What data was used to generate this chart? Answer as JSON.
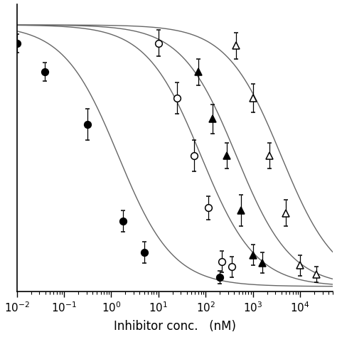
{
  "xlabel": "Inhibitor conc.   (nM)",
  "xlim_log": [
    -2,
    4.7
  ],
  "ylim": [
    -0.02,
    1.08
  ],
  "series": [
    {
      "name": "filled_circle",
      "marker": "o",
      "filled": true,
      "ic50_log": 0.15,
      "hill": 0.75,
      "x_data_log": [
        -2.0,
        -1.4,
        -0.5,
        0.25,
        0.7,
        2.3
      ],
      "y_data": [
        0.93,
        0.82,
        0.62,
        0.25,
        0.13,
        0.035
      ],
      "yerr": [
        0.035,
        0.035,
        0.06,
        0.04,
        0.04,
        0.025
      ]
    },
    {
      "name": "open_circle",
      "marker": "o",
      "filled": false,
      "ic50_log": 1.9,
      "hill": 0.75,
      "x_data_log": [
        1.0,
        1.4,
        1.75,
        2.05,
        2.35,
        2.55
      ],
      "y_data": [
        0.93,
        0.72,
        0.5,
        0.3,
        0.095,
        0.075
      ],
      "yerr": [
        0.05,
        0.06,
        0.06,
        0.045,
        0.04,
        0.04
      ]
    },
    {
      "name": "filled_triangle",
      "marker": "^",
      "filled": true,
      "ic50_log": 2.65,
      "hill": 0.75,
      "x_data_log": [
        1.85,
        2.15,
        2.45,
        2.75,
        3.0,
        3.2
      ],
      "y_data": [
        0.82,
        0.64,
        0.5,
        0.29,
        0.12,
        0.09
      ],
      "yerr": [
        0.05,
        0.055,
        0.05,
        0.06,
        0.04,
        0.04
      ]
    },
    {
      "name": "open_triangle",
      "marker": "^",
      "filled": false,
      "ic50_log": 3.6,
      "hill": 0.75,
      "x_data_log": [
        2.65,
        3.0,
        3.35,
        3.7,
        4.0,
        4.35
      ],
      "y_data": [
        0.92,
        0.72,
        0.5,
        0.28,
        0.08,
        0.045
      ],
      "yerr": [
        0.05,
        0.055,
        0.05,
        0.05,
        0.04,
        0.03
      ]
    }
  ],
  "background_color": "#ffffff",
  "axes_color": "#000000",
  "line_color": "#666666",
  "marker_size": 7,
  "capsize": 2,
  "elinewidth": 0.9,
  "linewidth": 1.0
}
